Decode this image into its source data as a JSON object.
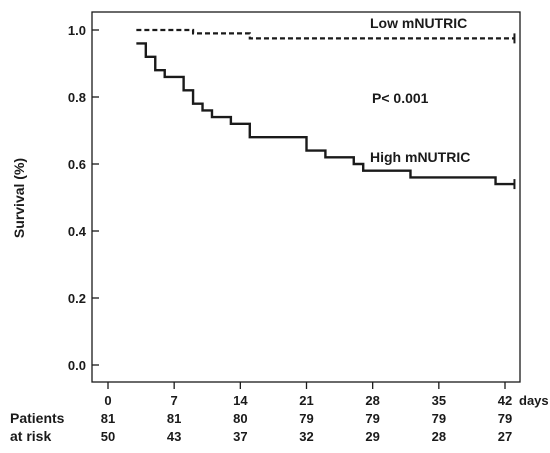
{
  "chart_data": {
    "type": "line",
    "title": "",
    "xlabel": "",
    "x_unit_label": "days",
    "ylabel": "Survival (%)",
    "xlim": [
      0,
      42
    ],
    "ylim": [
      0,
      1.0
    ],
    "x_ticks": [
      0,
      7,
      14,
      21,
      28,
      35,
      42
    ],
    "x_tick_labels": [
      "0",
      "7",
      "14",
      "21",
      "28",
      "35",
      "42"
    ],
    "y_ticks": [
      0.0,
      0.2,
      0.4,
      0.6,
      0.8,
      1.0
    ],
    "y_tick_labels": [
      "0.0",
      "0.2",
      "0.4",
      "0.6",
      "0.8",
      "1.0"
    ],
    "grid": false,
    "annotation": "P< 0.001",
    "series": [
      {
        "name": "Low mNUTRIC",
        "style": "dashed",
        "step": true,
        "x": [
          3,
          9,
          15,
          43
        ],
        "y": [
          1.0,
          0.99,
          0.975,
          0.975
        ],
        "censor_x": [
          43
        ]
      },
      {
        "name": "High mNUTRIC",
        "style": "solid",
        "step": true,
        "x": [
          3,
          4,
          5,
          6,
          8,
          9,
          10,
          11,
          13,
          15,
          21,
          23,
          26,
          27,
          32,
          41,
          43
        ],
        "y": [
          0.96,
          0.92,
          0.88,
          0.86,
          0.82,
          0.78,
          0.76,
          0.74,
          0.72,
          0.68,
          0.64,
          0.62,
          0.6,
          0.58,
          0.56,
          0.54,
          0.54
        ],
        "censor_x": [
          43
        ]
      }
    ],
    "risk_table": {
      "label_line1": "Patients",
      "label_line2": "at risk",
      "rows": [
        [
          "81",
          "81",
          "80",
          "79",
          "79",
          "79",
          "79"
        ],
        [
          "50",
          "43",
          "37",
          "32",
          "29",
          "28",
          "27"
        ]
      ]
    }
  }
}
